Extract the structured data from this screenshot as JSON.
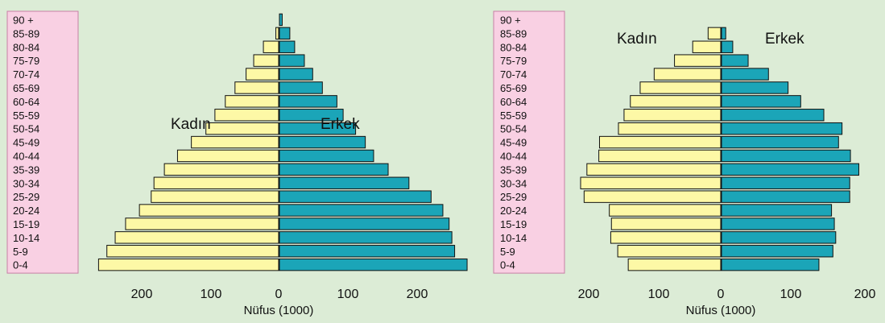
{
  "chart_data": [
    {
      "type": "bar",
      "title": "",
      "categories": [
        "0-4",
        "5-9",
        "10-14",
        "15-19",
        "20-24",
        "25-29",
        "30-34",
        "35-39",
        "40-44",
        "45-49",
        "50-54",
        "55-59",
        "60-64",
        "65-69",
        "70-74",
        "75-79",
        "80-84",
        "85-89",
        "90 +"
      ],
      "series": [
        {
          "name": "Kadın",
          "values": [
            260,
            248,
            236,
            221,
            201,
            184,
            180,
            165,
            146,
            126,
            105,
            92,
            77,
            63,
            47,
            36,
            22,
            4,
            0
          ]
        },
        {
          "name": "Erkek",
          "values": [
            271,
            253,
            249,
            245,
            236,
            219,
            187,
            157,
            136,
            124,
            110,
            92,
            83,
            62,
            48,
            36,
            22,
            15,
            4
          ]
        }
      ],
      "xlabel": "Nüfus (1000)",
      "xticks": [
        "200",
        "100",
        "0",
        "100",
        "200"
      ],
      "xlim": [
        -260,
        275
      ],
      "colors": {
        "Kadın": "#fdf8a6",
        "Erkek": "#1ba5b8",
        "panel": "#f9d0e3"
      }
    },
    {
      "type": "bar",
      "title": "",
      "categories": [
        "0-4",
        "5-9",
        "10-14",
        "15-19",
        "20-24",
        "25-29",
        "30-34",
        "35-39",
        "40-44",
        "45-49",
        "50-54",
        "55-59",
        "60-64",
        "65-69",
        "70-74",
        "75-79",
        "80-84",
        "85-89",
        "90 +"
      ],
      "series": [
        {
          "name": "Kadın",
          "values": [
            132,
            147,
            157,
            156,
            159,
            195,
            200,
            191,
            174,
            173,
            146,
            138,
            129,
            115,
            95,
            66,
            40,
            18,
            0
          ]
        },
        {
          "name": "Erkek",
          "values": [
            139,
            159,
            163,
            161,
            157,
            183,
            183,
            196,
            184,
            167,
            172,
            146,
            113,
            95,
            67,
            38,
            16,
            6,
            0
          ]
        }
      ],
      "xlabel": "Nüfus (1000)",
      "xticks": [
        "200",
        "100",
        "0",
        "100",
        "200"
      ],
      "xlim": [
        -200,
        200
      ],
      "colors": {
        "Kadın": "#fdf8a6",
        "Erkek": "#1ba5b8",
        "panel": "#f9d0e3"
      }
    }
  ]
}
